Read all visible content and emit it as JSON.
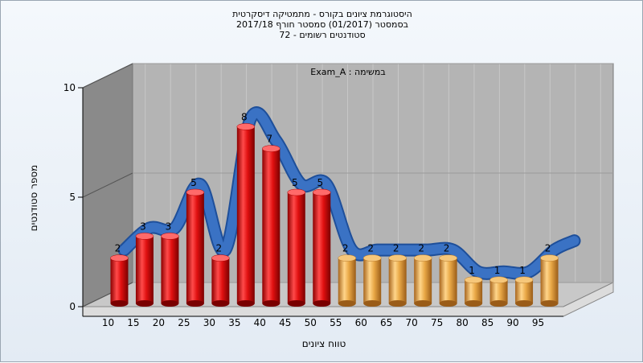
{
  "titles": {
    "line1": "היסטוגרמת ציונים בקורס - מתמטיקה דיסקרטית",
    "line2": "בסמסטר  (01/2017)  סמסטר חורף  2017/18",
    "line3": "סטודנטים רשומים - 72"
  },
  "colors": {
    "fail_bar": "#e41a1a",
    "pass_bar": "#e8a43c",
    "curve": "#3a72c4",
    "plot_bg": "#b4b4b4",
    "side_wall": "#8a8a8a",
    "floor": "#c8c8c8"
  },
  "chart_data": {
    "type": "bar",
    "annotation": "Exam_A : במשימה",
    "xlabel": "טווח ציונים",
    "ylabel": "מספר סטודנטים",
    "ylim": [
      0,
      10
    ],
    "yticks": [
      0,
      5,
      10
    ],
    "categories": [
      "10",
      "15",
      "20",
      "25",
      "30",
      "35",
      "40",
      "45",
      "50",
      "55",
      "60",
      "65",
      "70",
      "75",
      "80",
      "85",
      "90",
      "95"
    ],
    "values": [
      2,
      3,
      3,
      5,
      2,
      8,
      7,
      5,
      5,
      2,
      2,
      2,
      2,
      2,
      1,
      1,
      1,
      2
    ],
    "pass_from": "55",
    "grid": true,
    "curve": "smoothed-trend"
  }
}
